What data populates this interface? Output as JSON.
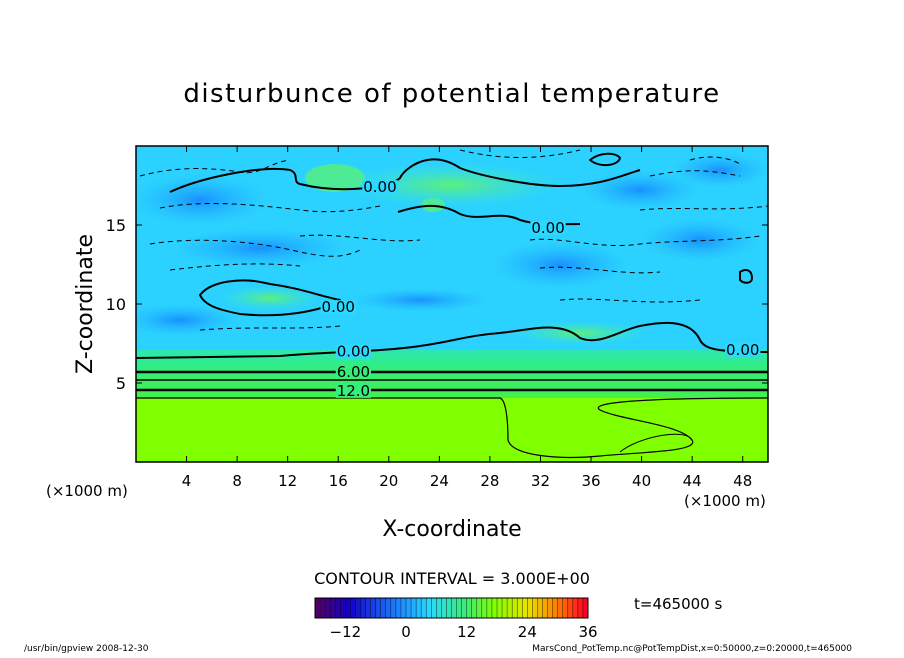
{
  "chart_data": {
    "type": "heatmap",
    "title": "disturbunce of potential temperature",
    "xlabel": "X-coordinate",
    "ylabel": "Z-coordinate",
    "x_unit": "(×1000 m)",
    "x_unit_left": "(×1000 m)",
    "xlim": [
      0,
      50
    ],
    "ylim": [
      0,
      20
    ],
    "x_ticks": [
      4,
      8,
      12,
      16,
      20,
      24,
      28,
      32,
      36,
      40,
      44,
      48
    ],
    "y_ticks": [
      5,
      10,
      15
    ],
    "grid": false,
    "contour_interval_label": "CONTOUR INTERVAL = 3.000E+00",
    "time_label": "t=465000 s",
    "colorbar": {
      "min": -18,
      "max": 36,
      "ticks": [
        -12,
        0,
        12,
        24,
        36
      ],
      "tick_labels": [
        "−12",
        "0",
        "12",
        "24",
        "36"
      ]
    },
    "contour_labels": [
      {
        "text": "0.00",
        "x": 19.3,
        "z": 17.4
      },
      {
        "text": "0.00",
        "x": 32.6,
        "z": 14.8
      },
      {
        "text": "0.00",
        "x": 16.0,
        "z": 9.8
      },
      {
        "text": "0.00",
        "x": 17.2,
        "z": 7.0
      },
      {
        "text": "0.00",
        "x": 48.0,
        "z": 7.1
      },
      {
        "text": "6.00",
        "x": 17.2,
        "z": 5.7
      },
      {
        "text": "12.0",
        "x": 17.2,
        "z": 4.5
      }
    ],
    "layers": [
      {
        "z_range": [
          0,
          4.0
        ],
        "value_approx": 15,
        "color": "#7fff00"
      },
      {
        "z_range": [
          4.0,
          7.2
        ],
        "value_approx": 6,
        "color": "#3ff06a"
      },
      {
        "z_range": [
          7.2,
          20
        ],
        "value_approx": 0,
        "color": "#2ad6ff"
      }
    ],
    "colors": {
      "cold": "#1aa6ff",
      "neutral": "#3ee6e6",
      "warm_band": "#35ec8a",
      "surface_warm": "#80ff00"
    }
  },
  "footer": {
    "left": "/usr/bin/gpview   2008-12-30",
    "right": "MarsCond_PotTemp.nc@PotTempDist,x=0:50000,z=0:20000,t=465000"
  }
}
